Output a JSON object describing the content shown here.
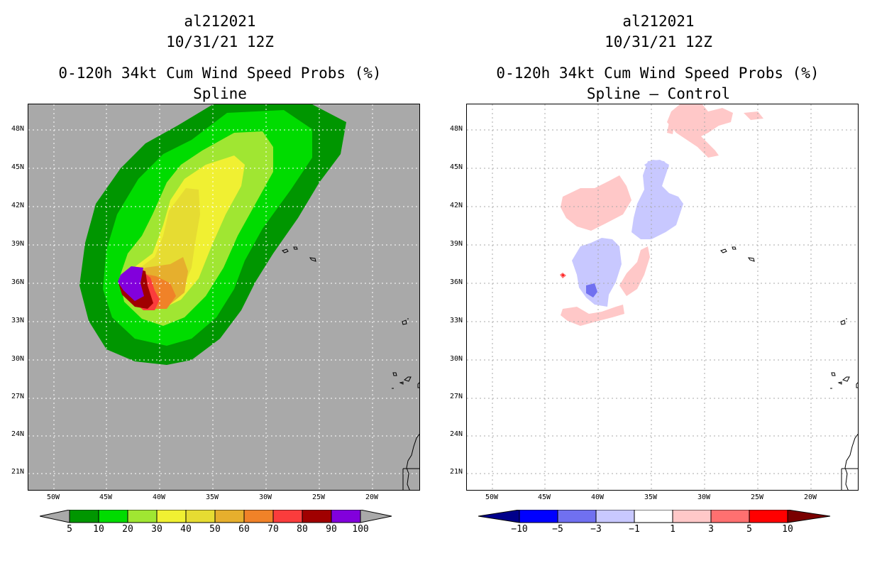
{
  "panels": [
    {
      "storm_id": "al212021",
      "datetime": "10/31/21 12Z",
      "title": "0-120h 34kt Cum Wind Speed Probs (%)",
      "subtitle": "Spline",
      "colorbar_labels": [
        "5",
        "10",
        "20",
        "30",
        "40",
        "50",
        "60",
        "70",
        "80",
        "90",
        "100"
      ]
    },
    {
      "storm_id": "al212021",
      "datetime": "10/31/21 12Z",
      "title": "0-120h 34kt Cum Wind Speed Probs (%)",
      "subtitle": "Spline – Control",
      "colorbar_labels": [
        "−10",
        "−5",
        "−3",
        "−1",
        "1",
        "3",
        "5",
        "10"
      ]
    }
  ],
  "lat_labels": [
    "48N",
    "45N",
    "42N",
    "39N",
    "36N",
    "33N",
    "30N",
    "27N",
    "24N",
    "21N"
  ],
  "lon_labels": [
    "50W",
    "45W",
    "40W",
    "35W",
    "30W",
    "25W",
    "20W"
  ],
  "colors": {
    "prob": [
      "#009600",
      "#00dc00",
      "#a0e632",
      "#f0f032",
      "#e6dc32",
      "#e6af2d",
      "#f08228",
      "#fa3c3c",
      "#a00000",
      "#8200dc"
    ],
    "diff": [
      "#00008b",
      "#0000ff",
      "#7070f0",
      "#c8c8ff",
      "#ffffff",
      "#ffc8c8",
      "#ff7070",
      "#ff0000",
      "#7a0000"
    ],
    "background_left": "#a9a9a9"
  }
}
